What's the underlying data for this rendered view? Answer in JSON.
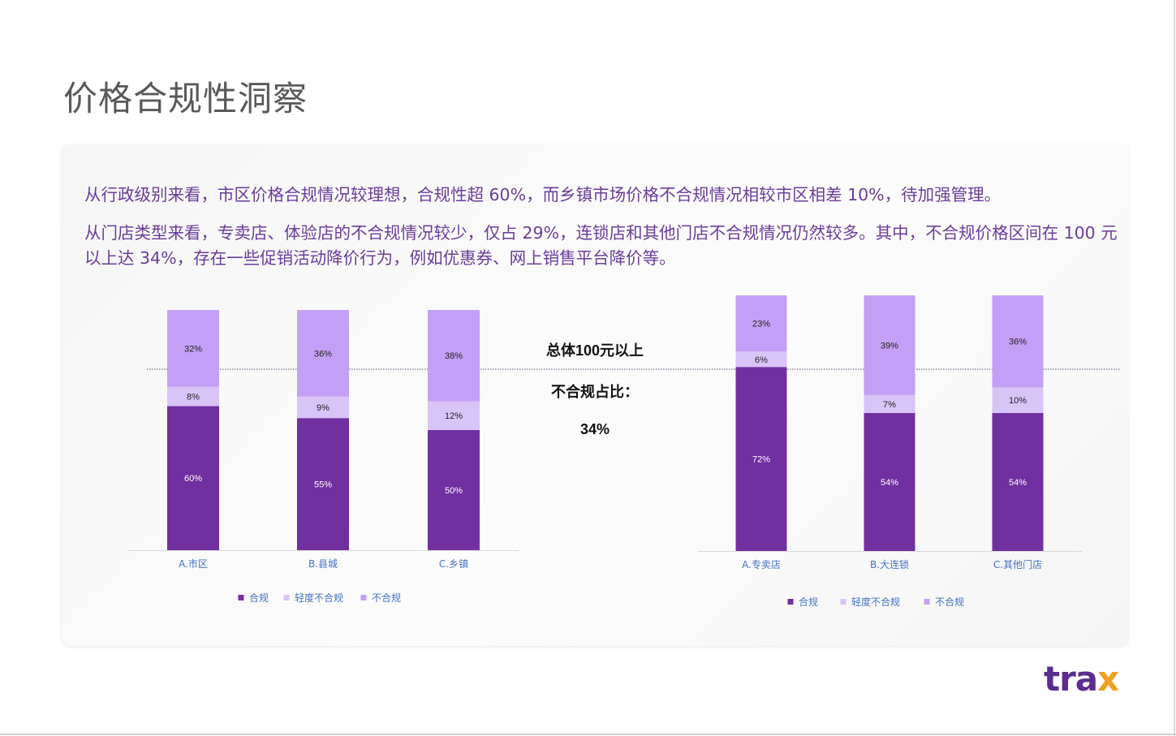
{
  "title": "价格合规性洞察",
  "paragraphs": [
    "从行政级别来看，市区价格合规情况较理想，合规性超 60%，而乡镇市场价格不合规情况相较市区相差 10%，待加强管理。",
    "从门店类型来看，专卖店、体验店的不合规情况较少，仅占 29%，连锁店和其他门店不合规情况仍然较多。其中，不合规价格区间在 100 元以上达 34%，存在一些促销活动降价行为，例如优惠券、网上销售平台降价等。"
  ],
  "center_note": {
    "line1": "总体100元以上",
    "line2": "不合规占比：",
    "value": "34%"
  },
  "logo": {
    "main": "tra",
    "accent": "x"
  },
  "colors": {
    "compliant": "#7030a0",
    "mild": "#d9c4f7",
    "noncompliant": "#c3a0f5",
    "text": "#6a3d9a",
    "axis_label": "#4472c4"
  },
  "chart_data": [
    {
      "type": "bar",
      "stacked": true,
      "categories": [
        "A.市区",
        "B.县城",
        "C.乡镇"
      ],
      "series": [
        {
          "name": "合规",
          "values": [
            60,
            55,
            50
          ],
          "labels": [
            "60%",
            "55%",
            "50%"
          ],
          "color": "#7030a0"
        },
        {
          "name": "轻度不合规",
          "values": [
            8,
            9,
            12
          ],
          "labels": [
            "8%",
            "9%",
            "12%"
          ],
          "color": "#d9c4f7"
        },
        {
          "name": "不合规",
          "values": [
            32,
            36,
            38
          ],
          "labels": [
            "32%",
            "36%",
            "38%"
          ],
          "color": "#c3a0f5"
        }
      ],
      "legend": "bottom"
    },
    {
      "type": "bar",
      "stacked": true,
      "categories": [
        "A.专卖店",
        "B.大连锁",
        "C.其他门店"
      ],
      "series": [
        {
          "name": "合规",
          "values": [
            72,
            54,
            54
          ],
          "labels": [
            "72%",
            "54%",
            "54%"
          ],
          "color": "#7030a0"
        },
        {
          "name": "轻度不合规",
          "values": [
            6,
            7,
            10
          ],
          "labels": [
            "6%",
            "7%",
            "10%"
          ],
          "color": "#d9c4f7"
        },
        {
          "name": "不合规",
          "values": [
            23,
            39,
            36
          ],
          "labels": [
            "23%",
            "39%",
            "36%"
          ],
          "color": "#c3a0f5"
        }
      ],
      "legend": "bottom"
    }
  ]
}
